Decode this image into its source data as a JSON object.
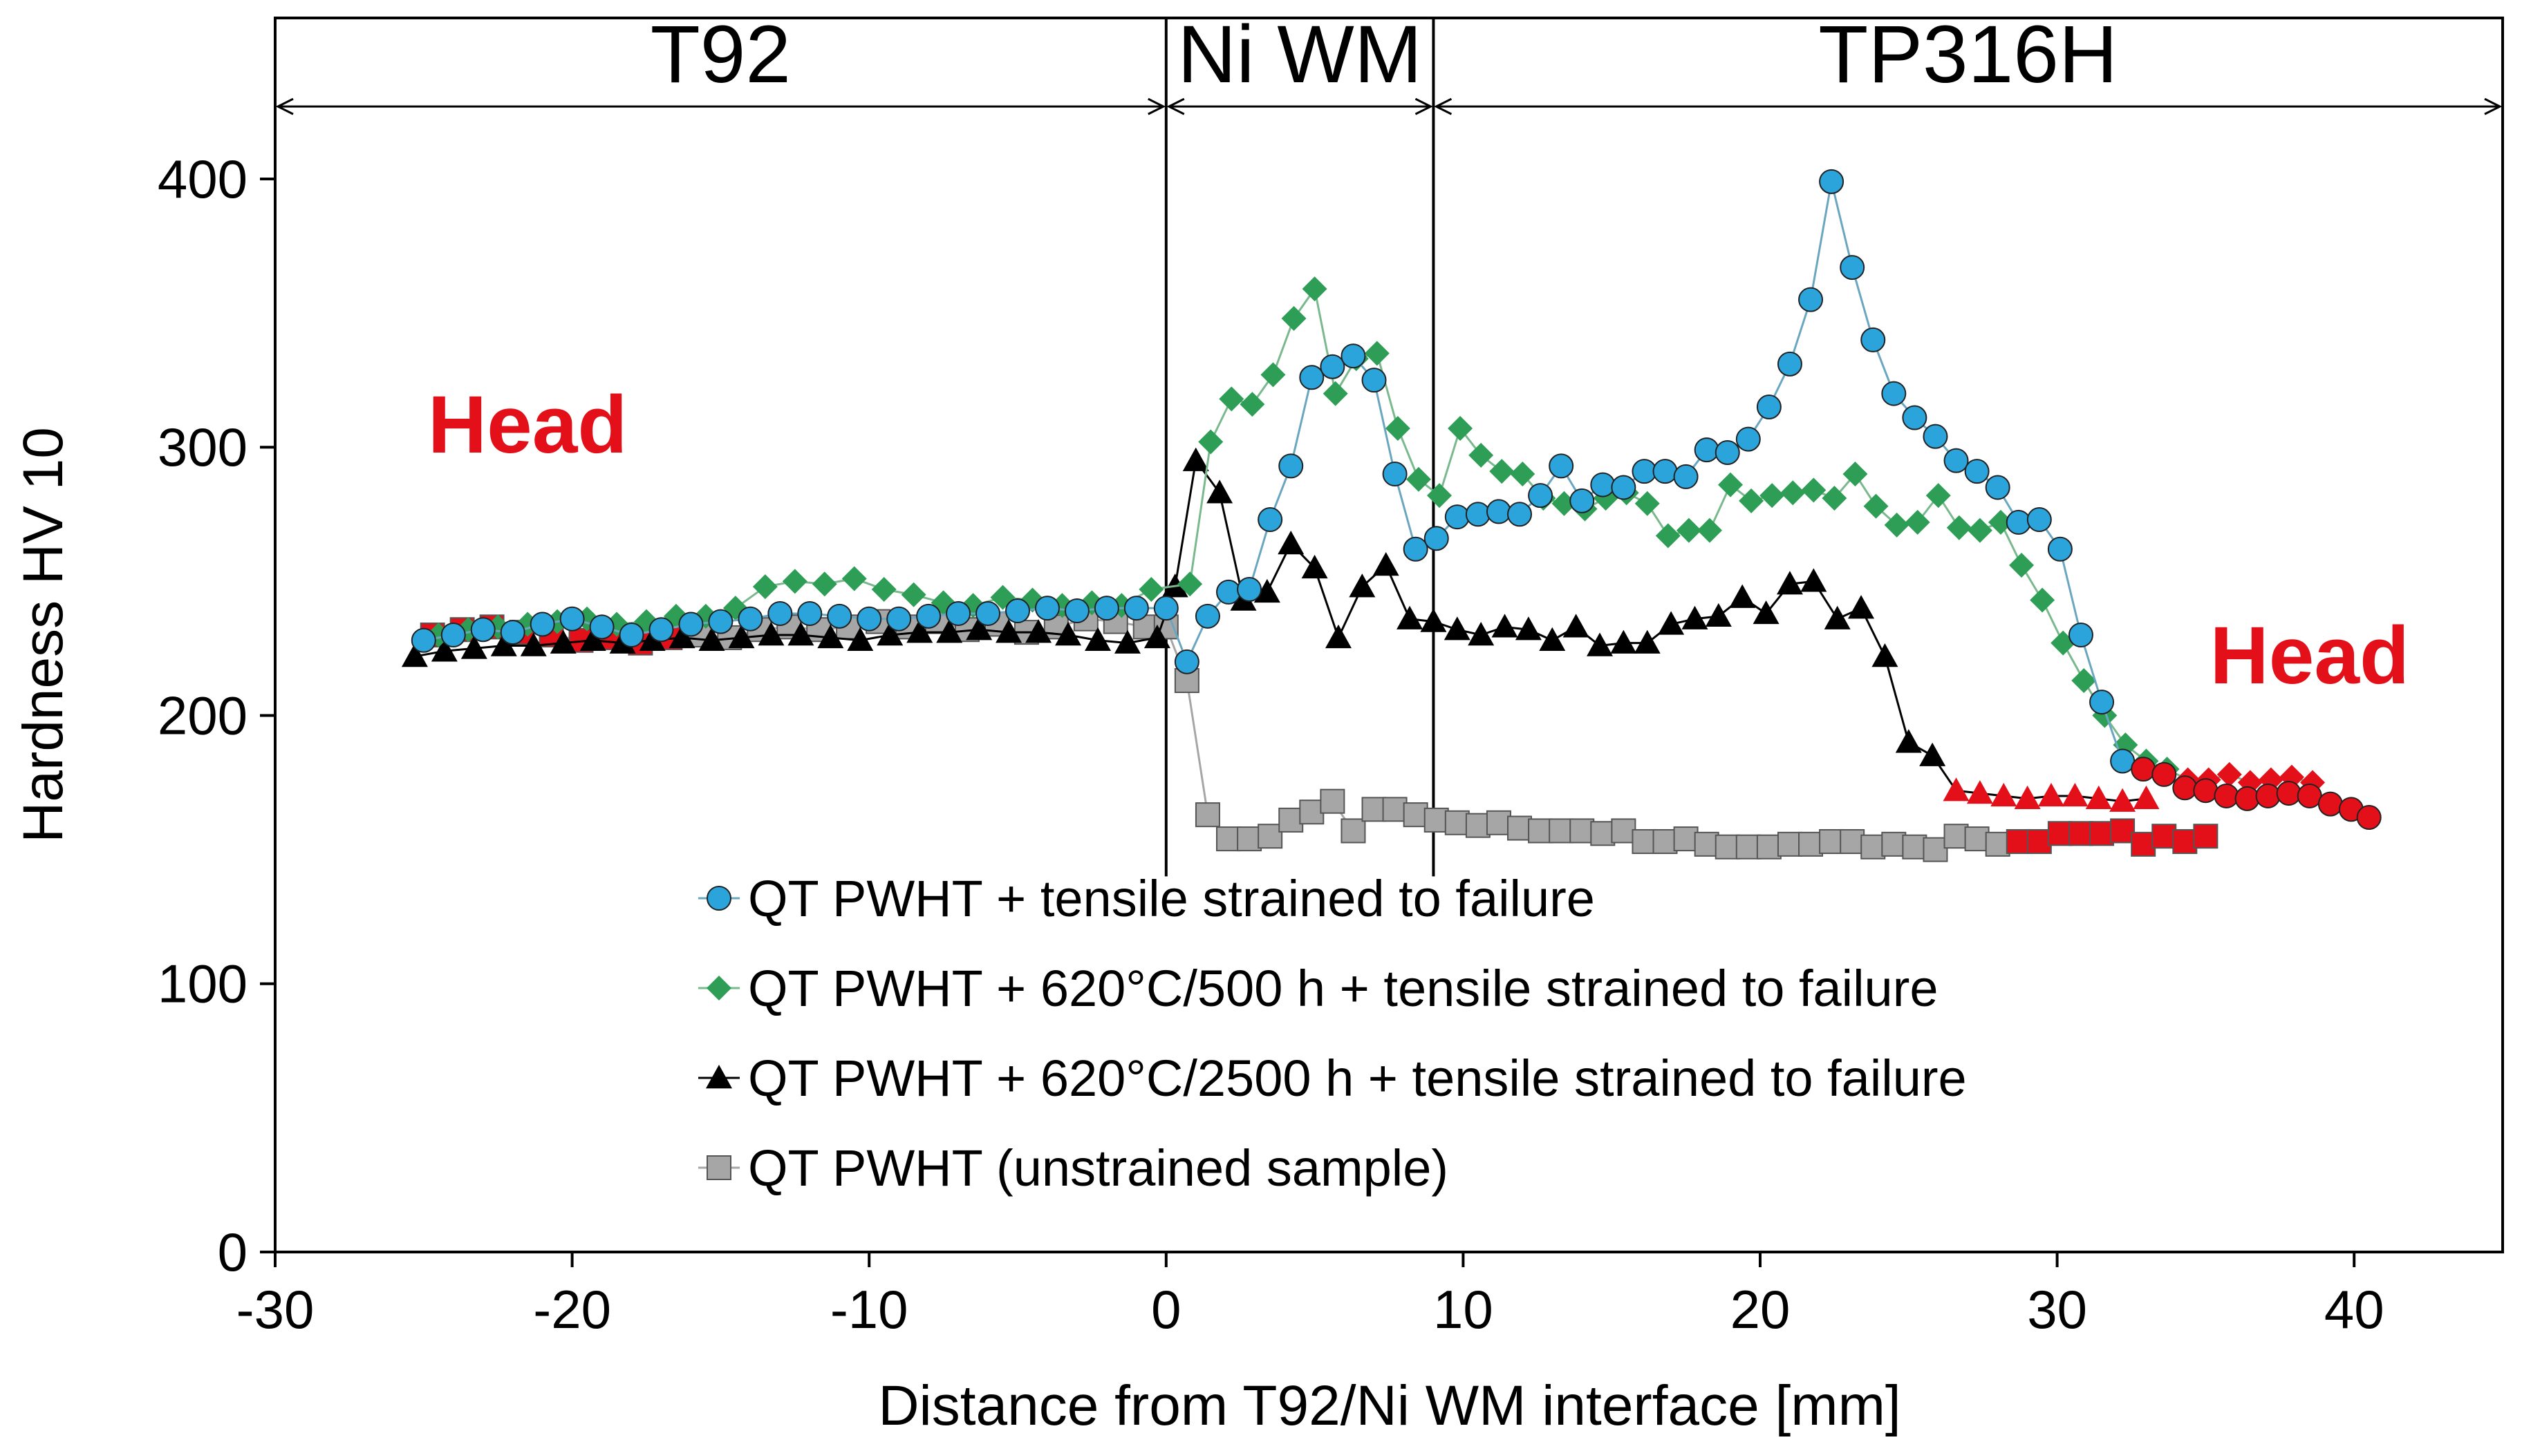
{
  "chart_data": {
    "type": "scatter",
    "title": "",
    "xlabel": "Distance from T92/Ni WM interface [mm]",
    "ylabel": "Hardness HV 10",
    "xlim": [
      -30,
      45
    ],
    "ylim": [
      0,
      400
    ],
    "ymax_plot": 460,
    "xticks": [
      -30,
      -20,
      -10,
      0,
      10,
      20,
      30,
      40
    ],
    "yticks": [
      0,
      100,
      200,
      300,
      400
    ],
    "grid": false,
    "legend_position": "center-bottom",
    "region_boundaries": [
      0,
      9
    ],
    "regions": [
      {
        "label": "T92",
        "from": -30,
        "to": 0
      },
      {
        "label": "Ni WM",
        "from": 0,
        "to": 9
      },
      {
        "label": "TP316H",
        "from": 9,
        "to": 45
      }
    ],
    "annotations": [
      {
        "text": "Head",
        "x": -21.5,
        "y": 298
      },
      {
        "text": "Head",
        "x": 38.5,
        "y": 212
      }
    ],
    "head_color": "#e3101a",
    "series": [
      {
        "name": "QT PWHT + tensile strained to failure",
        "marker": "circle",
        "color": "#2ba4db",
        "line_color": "#6aa6bf",
        "x": [
          -25,
          -24,
          -23,
          -22,
          -21,
          -20,
          -19,
          -18,
          -17,
          -16,
          -15,
          -14,
          -13,
          -12,
          -11,
          -10,
          -9,
          -8,
          -7,
          -6,
          -5,
          -4,
          -3,
          -2,
          -1,
          0,
          0.7,
          1.4,
          2.1,
          2.8,
          3.5,
          4.2,
          4.9,
          5.6,
          6.3,
          7,
          7.7,
          8.4,
          9.1,
          9.8,
          10.5,
          11.2,
          11.9,
          12.6,
          13.3,
          14,
          14.7,
          15.4,
          16.1,
          16.8,
          17.5,
          18.2,
          18.9,
          19.6,
          20.3,
          21,
          21.7,
          22.4,
          23.1,
          23.8,
          24.5,
          25.2,
          25.9,
          26.6,
          27.3,
          28,
          28.7,
          29.4,
          30.1,
          30.8,
          31.5,
          32.2,
          32.9,
          33.6,
          34.3,
          35,
          35.7,
          36.4,
          37.1,
          37.8,
          38.5,
          39.2,
          39.9,
          40.5
        ],
        "y": [
          228,
          230,
          232,
          231,
          234,
          236,
          233,
          230,
          232,
          234,
          235,
          236,
          238,
          238,
          237,
          236,
          236,
          237,
          238,
          238,
          239,
          240,
          239,
          240,
          240,
          240,
          220,
          237,
          246,
          247,
          273,
          293,
          326,
          330,
          334,
          325,
          290,
          262,
          266,
          274,
          275,
          276,
          275,
          282,
          293,
          280,
          286,
          285,
          291,
          291,
          289,
          299,
          298,
          303,
          315,
          331,
          355,
          399,
          367,
          340,
          320,
          311,
          304,
          295,
          291,
          285,
          272,
          273,
          262,
          230,
          205,
          183,
          180,
          178,
          173,
          172,
          170,
          169,
          170,
          171,
          170,
          167,
          165,
          162
        ],
        "head_from": 32.9
      },
      {
        "name": "QT PWHT + 620°C/500 h + tensile strained to failure",
        "marker": "diamond",
        "color": "#2e9e56",
        "line_color": "#7ab88e",
        "x": [
          -24.5,
          -23.5,
          -22.5,
          -21.5,
          -20.5,
          -19.5,
          -18.5,
          -17.5,
          -16.5,
          -15.5,
          -14.5,
          -13.5,
          -12.5,
          -11.5,
          -10.5,
          -9.5,
          -8.5,
          -7.5,
          -6.5,
          -5.5,
          -4.5,
          -3.5,
          -2.5,
          -1.5,
          -0.5,
          0.8,
          1.5,
          2.2,
          2.9,
          3.6,
          4.3,
          5,
          5.7,
          6.4,
          7.1,
          7.8,
          8.5,
          9.2,
          9.9,
          10.6,
          11.3,
          12,
          12.7,
          13.4,
          14.1,
          14.8,
          15.5,
          16.2,
          16.9,
          17.6,
          18.3,
          19,
          19.7,
          20.4,
          21.1,
          21.8,
          22.5,
          23.2,
          23.9,
          24.6,
          25.3,
          26,
          26.7,
          27.4,
          28.1,
          28.8,
          29.5,
          30.2,
          30.9,
          31.6,
          32.3,
          33,
          33.7,
          34.4,
          35.1,
          35.8,
          36.5,
          37.2,
          37.9,
          38.6
        ],
        "y": [
          230,
          232,
          233,
          234,
          235,
          236,
          234,
          235,
          237,
          237,
          240,
          248,
          250,
          249,
          251,
          247,
          245,
          242,
          241,
          244,
          243,
          241,
          242,
          241,
          247,
          249,
          302,
          318,
          316,
          327,
          348,
          359,
          320,
          333,
          335,
          307,
          288,
          282,
          307,
          297,
          291,
          290,
          281,
          279,
          277,
          281,
          283,
          279,
          267,
          269,
          269,
          286,
          280,
          282,
          283,
          284,
          281,
          290,
          278,
          271,
          272,
          282,
          270,
          269,
          272,
          256,
          243,
          227,
          213,
          200,
          189,
          183,
          180,
          176,
          176,
          178,
          175,
          176,
          177,
          175
        ],
        "head_from": 34.4
      },
      {
        "name": "QT PWHT + 620°C/2500 h + tensile strained to failure",
        "marker": "triangle",
        "color": "#000000",
        "line_color": "#000000",
        "x": [
          -25.3,
          -24.3,
          -23.3,
          -22.3,
          -21.3,
          -20.3,
          -19.3,
          -18.3,
          -17.3,
          -16.3,
          -15.3,
          -14.3,
          -13.3,
          -12.3,
          -11.3,
          -10.3,
          -9.3,
          -8.3,
          -7.3,
          -6.3,
          -5.3,
          -4.3,
          -3.3,
          -2.3,
          -1.3,
          -0.3,
          0.3,
          1,
          1.8,
          2.6,
          3.4,
          4.2,
          5,
          5.8,
          6.6,
          7.4,
          8.2,
          9,
          9.8,
          10.6,
          11.4,
          12.2,
          13,
          13.8,
          14.6,
          15.4,
          16.2,
          17,
          17.8,
          18.6,
          19.4,
          20.2,
          21,
          21.8,
          22.6,
          23.4,
          24.2,
          25,
          25.8,
          26.6,
          27.4,
          28.2,
          29,
          29.8,
          30.6,
          31.4,
          32.2,
          33
        ],
        "y": [
          222,
          224,
          225,
          226,
          226,
          227,
          228,
          227,
          228,
          229,
          228,
          229,
          230,
          230,
          229,
          228,
          230,
          231,
          231,
          232,
          231,
          231,
          230,
          228,
          227,
          229,
          248,
          295,
          283,
          243,
          246,
          264,
          255,
          229,
          248,
          256,
          236,
          235,
          232,
          230,
          233,
          232,
          228,
          233,
          226,
          227,
          227,
          234,
          236,
          237,
          244,
          238,
          249,
          250,
          236,
          240,
          222,
          190,
          185,
          172,
          171,
          170,
          169,
          170,
          170,
          169,
          168,
          169
        ],
        "head_from": 26.6
      },
      {
        "name": "QT PWHT (unstrained sample)",
        "marker": "square",
        "color": "#a6a6a6",
        "line_color": "#a6a6a6",
        "x": [
          -24.7,
          -23.7,
          -22.7,
          -21.7,
          -20.7,
          -19.7,
          -18.7,
          -17.7,
          -16.7,
          -15.7,
          -14.7,
          -13.7,
          -12.7,
          -11.7,
          -10.7,
          -9.7,
          -8.7,
          -7.7,
          -6.7,
          -5.7,
          -4.7,
          -3.7,
          -2.7,
          -1.7,
          -0.7,
          0,
          0.7,
          1.4,
          2.1,
          2.8,
          3.5,
          4.2,
          4.9,
          5.6,
          6.3,
          7,
          7.7,
          8.4,
          9.1,
          9.8,
          10.5,
          11.2,
          11.9,
          12.6,
          13.3,
          14,
          14.7,
          15.4,
          16.1,
          16.8,
          17.5,
          18.2,
          18.9,
          19.6,
          20.3,
          21,
          21.7,
          22.4,
          23.1,
          23.8,
          24.5,
          25.2,
          25.9,
          26.6,
          27.3,
          28,
          28.7,
          29.4,
          30.1,
          30.8,
          31.5,
          32.2,
          32.9,
          33.6,
          34.3,
          35
        ],
        "y": [
          230,
          232,
          233,
          231,
          230,
          228,
          229,
          227,
          229,
          230,
          229,
          232,
          233,
          232,
          233,
          235,
          233,
          235,
          232,
          234,
          231,
          233,
          236,
          235,
          233,
          233,
          213,
          163,
          154,
          154,
          155,
          161,
          164,
          168,
          157,
          165,
          165,
          163,
          161,
          160,
          159,
          160,
          158,
          157,
          157,
          157,
          156,
          157,
          153,
          153,
          154,
          152,
          151,
          151,
          151,
          152,
          152,
          153,
          153,
          151,
          152,
          151,
          150,
          155,
          154,
          152,
          153,
          153,
          156,
          156,
          156,
          157,
          152,
          155,
          153,
          155
        ],
        "head_until": -16.7,
        "head_from": 28.7
      }
    ]
  }
}
